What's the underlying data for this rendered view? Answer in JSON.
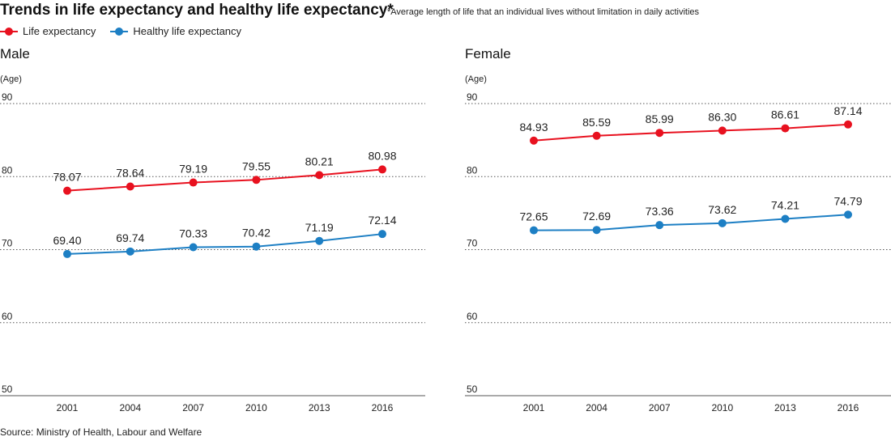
{
  "title": "Trends in life expectancy and healthy life expectancy*",
  "note": "*Average length of life that an individual lives without limitation in daily activities",
  "legend": [
    {
      "label": "Life expectancy",
      "color": "#e8111f"
    },
    {
      "label": "Healthy life expectancy",
      "color": "#1d7fc4"
    }
  ],
  "source": "Source: Ministry of Health, Labour and Welfare",
  "chart_data": [
    {
      "type": "line",
      "title": "Male",
      "ylabel": "(Age)",
      "x": [
        "2001",
        "2004",
        "2007",
        "2010",
        "2013",
        "2016"
      ],
      "ylim": [
        50,
        90
      ],
      "yticks": [
        90,
        80,
        70,
        60,
        50
      ],
      "grid": true,
      "legend_position": "top-left",
      "series": [
        {
          "name": "Life expectancy",
          "color": "#e8111f",
          "values": [
            78.07,
            78.64,
            79.19,
            79.55,
            80.21,
            80.98
          ],
          "labels": [
            "78.07",
            "78.64",
            "79.19",
            "79.55",
            "80.21",
            "80.98"
          ]
        },
        {
          "name": "Healthy life expectancy",
          "color": "#1d7fc4",
          "values": [
            69.4,
            69.74,
            70.33,
            70.42,
            71.19,
            72.14
          ],
          "labels": [
            "69.40",
            "69.74",
            "70.33",
            "70.42",
            "71.19",
            "72.14"
          ]
        }
      ]
    },
    {
      "type": "line",
      "title": "Female",
      "ylabel": "(Age)",
      "x": [
        "2001",
        "2004",
        "2007",
        "2010",
        "2013",
        "2016"
      ],
      "ylim": [
        50,
        90
      ],
      "yticks": [
        90,
        80,
        70,
        60,
        50
      ],
      "grid": true,
      "legend_position": "top-left",
      "series": [
        {
          "name": "Life expectancy",
          "color": "#e8111f",
          "values": [
            84.93,
            85.59,
            85.99,
            86.3,
            86.61,
            87.14
          ],
          "labels": [
            "84.93",
            "85.59",
            "85.99",
            "86.30",
            "86.61",
            "87.14"
          ]
        },
        {
          "name": "Healthy life expectancy",
          "color": "#1d7fc4",
          "values": [
            72.65,
            72.69,
            73.36,
            73.62,
            74.21,
            74.79
          ],
          "labels": [
            "72.65",
            "72.69",
            "73.36",
            "73.62",
            "74.21",
            "74.79"
          ]
        }
      ]
    }
  ]
}
